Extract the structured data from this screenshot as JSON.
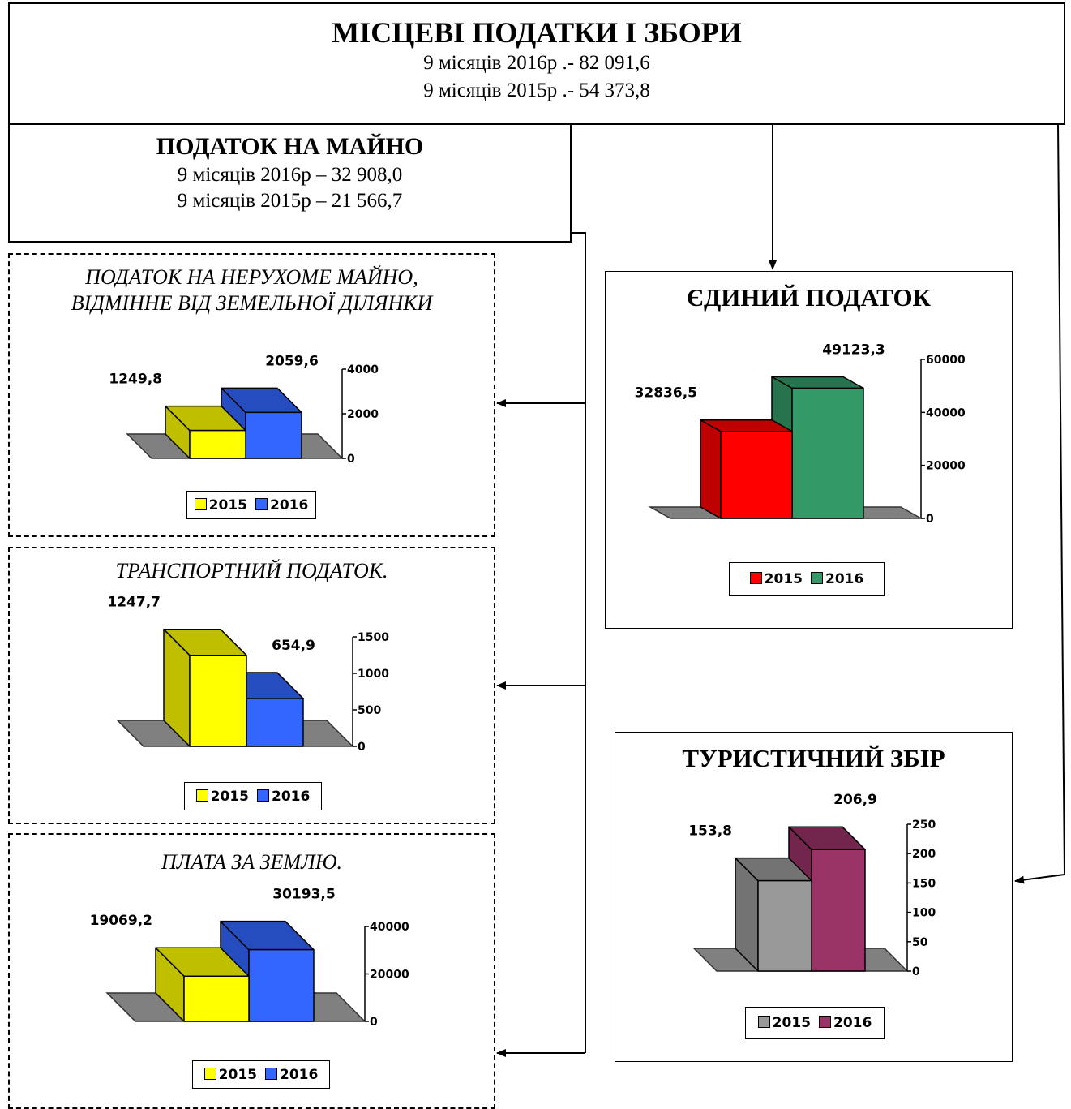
{
  "header": {
    "title": "МІСЦЕВІ ПОДАТКИ І ЗБОРИ",
    "lines": [
      "9 місяців 2016р .- 82 091,6",
      "9 місяців 2015р .- 54 373,8"
    ]
  },
  "property_tax": {
    "title": "ПОДАТОК НА МАЙНО",
    "lines": [
      "9 місяців 2016р – 32 908,0",
      "9 місяців 2015р – 21 566,7"
    ]
  },
  "chart_data": [
    {
      "type": "bar3d",
      "title": "ПОДАТОК НА НЕРУХОМЕ МАЙНО, ВІДМІННЕ ВІД ЗЕМЕЛЬНОЇ ДІЛЯНКИ",
      "series": [
        {
          "name": "2015",
          "color": "#ffff00",
          "values": [
            1249.8
          ],
          "value_labels": [
            "1249,8"
          ]
        },
        {
          "name": "2016",
          "color": "#3366ff",
          "values": [
            2059.6
          ],
          "value_labels": [
            "2059,6"
          ]
        }
      ],
      "ylim": [
        0,
        4000
      ],
      "yticks": [
        0,
        2000,
        4000
      ]
    },
    {
      "type": "bar3d",
      "title": "ТРАНСПОРТНИЙ ПОДАТОК.",
      "series": [
        {
          "name": "2015",
          "color": "#ffff00",
          "values": [
            1247.7
          ],
          "value_labels": [
            "1247,7"
          ]
        },
        {
          "name": "2016",
          "color": "#3366ff",
          "values": [
            654.9
          ],
          "value_labels": [
            "654,9"
          ]
        }
      ],
      "ylim": [
        0,
        1500
      ],
      "yticks": [
        0,
        500,
        1000,
        1500
      ]
    },
    {
      "type": "bar3d",
      "title": "ПЛАТА ЗА ЗЕМЛЮ.",
      "series": [
        {
          "name": "2015",
          "color": "#ffff00",
          "values": [
            19069.2
          ],
          "value_labels": [
            "19069,2"
          ]
        },
        {
          "name": "2016",
          "color": "#3366ff",
          "values": [
            30193.5
          ],
          "value_labels": [
            "30193,5"
          ]
        }
      ],
      "ylim": [
        0,
        40000
      ],
      "yticks": [
        0,
        20000,
        40000
      ]
    },
    {
      "type": "bar3d",
      "title": "ЄДИНИЙ ПОДАТОК",
      "series": [
        {
          "name": "2015",
          "color": "#ff0000",
          "values": [
            32836.5
          ],
          "value_labels": [
            "32836,5"
          ]
        },
        {
          "name": "2016",
          "color": "#339966",
          "values": [
            49123.3
          ],
          "value_labels": [
            "49123,3"
          ]
        }
      ],
      "ylim": [
        0,
        60000
      ],
      "yticks": [
        0,
        20000,
        40000,
        60000
      ]
    },
    {
      "type": "bar3d",
      "title": "ТУРИСТИЧНИЙ ЗБІР",
      "series": [
        {
          "name": "2015",
          "color": "#999999",
          "values": [
            153.8
          ],
          "value_labels": [
            "153,8"
          ]
        },
        {
          "name": "2016",
          "color": "#993366",
          "values": [
            206.9
          ],
          "value_labels": [
            "206,9"
          ]
        }
      ],
      "ylim": [
        0,
        250
      ],
      "yticks": [
        0,
        50,
        100,
        150,
        200,
        250
      ]
    }
  ]
}
